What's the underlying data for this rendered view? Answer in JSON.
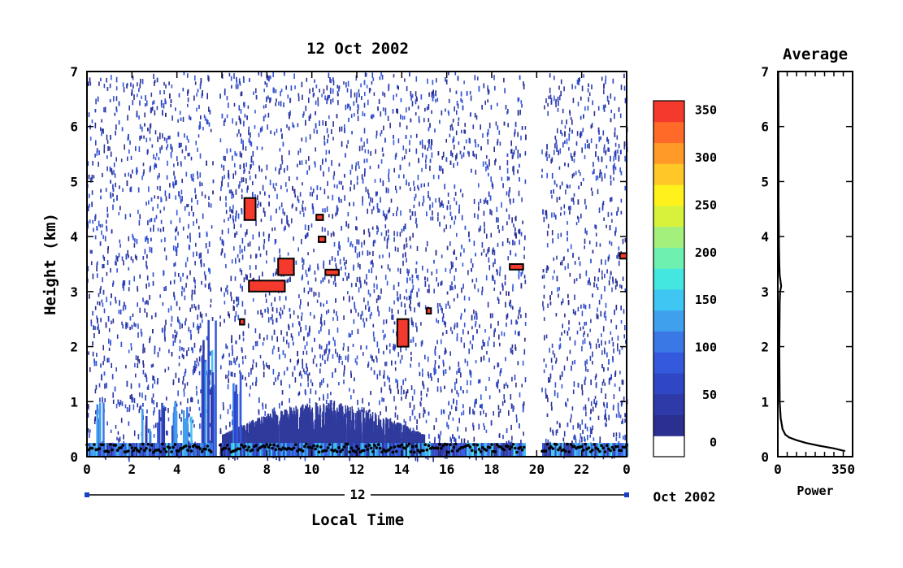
{
  "chart_data": [
    {
      "type": "heatmap",
      "title": "12 Oct 2002",
      "xlabel": "Local Time",
      "ylabel": "Height (km)",
      "x_ticks": [
        "0",
        "2",
        "4",
        "6",
        "8",
        "10",
        "12",
        "14",
        "16",
        "18",
        "20",
        "22",
        "0"
      ],
      "y_ticks": [
        "0",
        "1",
        "2",
        "3",
        "4",
        "5",
        "6",
        "7"
      ],
      "xlim": [
        0,
        24
      ],
      "ylim": [
        0,
        7
      ],
      "date_bar": {
        "day": "12",
        "month_year": "Oct 2002"
      },
      "colorbar": {
        "ticks": [
          "0",
          "50",
          "100",
          "150",
          "200",
          "250",
          "300",
          "350"
        ],
        "range": [
          0,
          375
        ],
        "colors": [
          "#ffffff",
          "#2b2f8f",
          "#2d3aa8",
          "#2f47c4",
          "#3559dc",
          "#3a78e6",
          "#3fa0ee",
          "#3fc6f2",
          "#44e6e0",
          "#6ef0b0",
          "#a4f07c",
          "#d8f23c",
          "#fff21c",
          "#ffc828",
          "#ff9a28",
          "#ff6a28",
          "#f43a2c"
        ]
      },
      "features": {
        "cloud_layers": [
          {
            "t": [
              7.0,
              7.5
            ],
            "h": [
              4.3,
              4.7
            ]
          },
          {
            "t": [
              7.2,
              8.8
            ],
            "h": [
              3.0,
              3.2
            ]
          },
          {
            "t": [
              8.5,
              9.2
            ],
            "h": [
              3.3,
              3.6
            ]
          },
          {
            "t": [
              10.6,
              11.2
            ],
            "h": [
              3.3,
              3.4
            ]
          },
          {
            "t": [
              10.3,
              10.6
            ],
            "h": [
              3.9,
              4.0
            ]
          },
          {
            "t": [
              10.2,
              10.5
            ],
            "h": [
              4.3,
              4.4
            ]
          },
          {
            "t": [
              6.8,
              7.0
            ],
            "h": [
              2.4,
              2.5
            ]
          },
          {
            "t": [
              13.8,
              14.3
            ],
            "h": [
              2.0,
              2.5
            ]
          },
          {
            "t": [
              15.1,
              15.3
            ],
            "h": [
              2.6,
              2.7
            ]
          },
          {
            "t": [
              18.8,
              19.4
            ],
            "h": [
              3.4,
              3.5
            ]
          },
          {
            "t": [
              23.7,
              24.0
            ],
            "h": [
              3.6,
              3.7
            ]
          }
        ],
        "data_gaps": [
          [
            5.6,
            5.9
          ],
          [
            19.5,
            20.2
          ]
        ]
      }
    },
    {
      "type": "line",
      "title": "Average",
      "xlabel": "Power",
      "x_ticks": [
        "0",
        "350"
      ],
      "y_ticks": [
        "0",
        "1",
        "2",
        "3",
        "4",
        "5",
        "6",
        "7"
      ],
      "xlim": [
        0,
        400
      ],
      "ylim": [
        0,
        7
      ],
      "series": [
        {
          "x": [
            360,
            300,
            220,
            150,
            100,
            60,
            40,
            25,
            15,
            10,
            8,
            10,
            12,
            18,
            10,
            8,
            6,
            5,
            4,
            4,
            3,
            2
          ],
          "y": [
            0.1,
            0.15,
            0.2,
            0.25,
            0.3,
            0.35,
            0.4,
            0.5,
            0.7,
            1.0,
            2.0,
            2.8,
            3.0,
            3.1,
            3.3,
            3.5,
            3.8,
            4.3,
            4.6,
            5.5,
            6.5,
            7.0
          ]
        }
      ]
    }
  ]
}
